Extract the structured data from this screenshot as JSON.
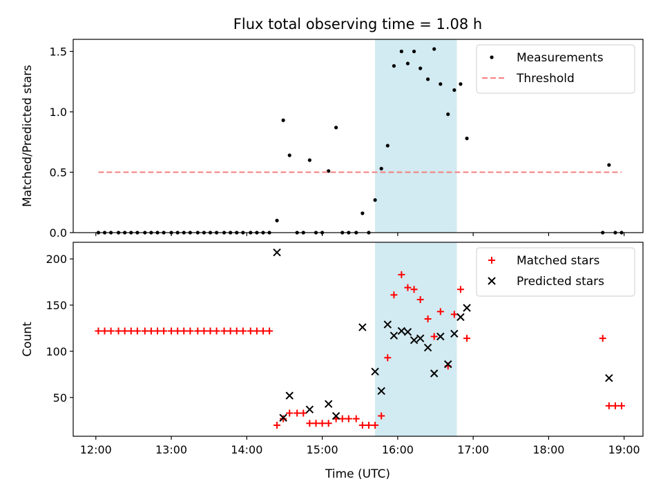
{
  "figure": {
    "title": "Flux total observing time = 1.08 h",
    "xlabel": "Time (UTC)",
    "x_tick_labels": [
      "12:00",
      "13:00",
      "14:00",
      "15:00",
      "16:00",
      "17:00",
      "18:00",
      "19:00"
    ]
  },
  "colors": {
    "measurement": "#000000",
    "threshold": "#f47f7f",
    "matched": "#ff0000",
    "predicted": "#000000",
    "highlight": "#add8e6"
  },
  "chart_data": [
    {
      "type": "scatter",
      "ylabel": "Matched/Predicted stars",
      "ylim": [
        0,
        1.6
      ],
      "xlim": [
        "11:42",
        "19:15"
      ],
      "y_ticks": [
        0.0,
        0.5,
        1.0,
        1.5
      ],
      "y_tick_labels": [
        "0.0",
        "0.5",
        "1.0",
        "1.5"
      ],
      "legend_position": "top-right",
      "highlight_span": {
        "x_start": "15:42",
        "x_end": "16:47"
      },
      "series": [
        {
          "name": "Measurements",
          "marker": "dot",
          "points": [
            [
              "12:02",
              0
            ],
            [
              "12:07",
              0
            ],
            [
              "12:12",
              0
            ],
            [
              "12:18",
              0
            ],
            [
              "12:23",
              0
            ],
            [
              "12:28",
              0
            ],
            [
              "12:33",
              0
            ],
            [
              "12:39",
              0
            ],
            [
              "12:44",
              0
            ],
            [
              "12:49",
              0
            ],
            [
              "12:54",
              0
            ],
            [
              "13:00",
              0
            ],
            [
              "13:05",
              0
            ],
            [
              "13:10",
              0
            ],
            [
              "13:15",
              0
            ],
            [
              "13:21",
              0
            ],
            [
              "13:26",
              0
            ],
            [
              "13:31",
              0
            ],
            [
              "13:36",
              0
            ],
            [
              "13:42",
              0
            ],
            [
              "13:47",
              0
            ],
            [
              "13:52",
              0
            ],
            [
              "13:57",
              0
            ],
            [
              "14:03",
              0
            ],
            [
              "14:08",
              0
            ],
            [
              "14:13",
              0
            ],
            [
              "14:18",
              0
            ],
            [
              "14:24",
              0.1
            ],
            [
              "14:29",
              0.93
            ],
            [
              "14:34",
              0.64
            ],
            [
              "14:40",
              0
            ],
            [
              "14:45",
              0
            ],
            [
              "14:50",
              0.6
            ],
            [
              "14:55",
              0
            ],
            [
              "15:00",
              0
            ],
            [
              "15:05",
              0.51
            ],
            [
              "15:11",
              0.87
            ],
            [
              "15:16",
              0
            ],
            [
              "15:21",
              0
            ],
            [
              "15:27",
              0
            ],
            [
              "15:32",
              0.16
            ],
            [
              "15:37",
              0
            ],
            [
              "15:42",
              0.27
            ],
            [
              "15:47",
              0.53
            ],
            [
              "15:52",
              0.72
            ],
            [
              "15:57",
              1.38
            ],
            [
              "16:03",
              1.5
            ],
            [
              "16:08",
              1.4
            ],
            [
              "16:13",
              1.5
            ],
            [
              "16:18",
              1.36
            ],
            [
              "16:24",
              1.27
            ],
            [
              "16:29",
              1.52
            ],
            [
              "16:34",
              1.23
            ],
            [
              "16:40",
              0.98
            ],
            [
              "16:45",
              1.18
            ],
            [
              "16:50",
              1.23
            ],
            [
              "16:55",
              0.78
            ],
            [
              "18:43",
              0
            ],
            [
              "18:48",
              0.56
            ],
            [
              "18:53",
              0
            ],
            [
              "18:58",
              0
            ]
          ]
        },
        {
          "name": "Threshold",
          "marker": "dashed-line",
          "points": [
            [
              "12:02",
              0.5
            ],
            [
              "18:58",
              0.5
            ]
          ]
        }
      ]
    },
    {
      "type": "scatter",
      "ylabel": "Count",
      "ylim": [
        8,
        218
      ],
      "xlim": [
        "11:42",
        "19:15"
      ],
      "y_ticks": [
        50,
        100,
        150,
        200
      ],
      "y_tick_labels": [
        "50",
        "100",
        "150",
        "200"
      ],
      "legend_position": "top-right",
      "highlight_span": {
        "x_start": "15:42",
        "x_end": "16:47"
      },
      "series": [
        {
          "name": "Matched stars",
          "marker": "plus",
          "points": [
            [
              "12:02",
              122
            ],
            [
              "12:07",
              122
            ],
            [
              "12:12",
              122
            ],
            [
              "12:18",
              122
            ],
            [
              "12:23",
              122
            ],
            [
              "12:28",
              122
            ],
            [
              "12:33",
              122
            ],
            [
              "12:39",
              122
            ],
            [
              "12:44",
              122
            ],
            [
              "12:49",
              122
            ],
            [
              "12:54",
              122
            ],
            [
              "13:00",
              122
            ],
            [
              "13:05",
              122
            ],
            [
              "13:10",
              122
            ],
            [
              "13:15",
              122
            ],
            [
              "13:21",
              122
            ],
            [
              "13:26",
              122
            ],
            [
              "13:31",
              122
            ],
            [
              "13:36",
              122
            ],
            [
              "13:42",
              122
            ],
            [
              "13:47",
              122
            ],
            [
              "13:52",
              122
            ],
            [
              "13:57",
              122
            ],
            [
              "14:03",
              122
            ],
            [
              "14:08",
              122
            ],
            [
              "14:13",
              122
            ],
            [
              "14:18",
              122
            ],
            [
              "14:24",
              20
            ],
            [
              "14:29",
              27
            ],
            [
              "14:34",
              33
            ],
            [
              "14:40",
              33
            ],
            [
              "14:45",
              33
            ],
            [
              "14:50",
              22
            ],
            [
              "14:55",
              22
            ],
            [
              "15:00",
              22
            ],
            [
              "15:05",
              22
            ],
            [
              "15:11",
              27
            ],
            [
              "15:16",
              27
            ],
            [
              "15:21",
              27
            ],
            [
              "15:27",
              27
            ],
            [
              "15:32",
              20
            ],
            [
              "15:37",
              20
            ],
            [
              "15:42",
              20
            ],
            [
              "15:47",
              30
            ],
            [
              "15:52",
              93
            ],
            [
              "15:57",
              161
            ],
            [
              "16:03",
              183
            ],
            [
              "16:08",
              169
            ],
            [
              "16:13",
              167
            ],
            [
              "16:18",
              156
            ],
            [
              "16:24",
              135
            ],
            [
              "16:29",
              116
            ],
            [
              "16:34",
              143
            ],
            [
              "16:40",
              84
            ],
            [
              "16:45",
              140
            ],
            [
              "16:50",
              167
            ],
            [
              "16:55",
              114
            ],
            [
              "18:43",
              114
            ],
            [
              "18:48",
              41
            ],
            [
              "18:53",
              41
            ],
            [
              "18:58",
              41
            ]
          ]
        },
        {
          "name": "Predicted stars",
          "marker": "x",
          "points": [
            [
              "14:24",
              207
            ],
            [
              "14:29",
              28
            ],
            [
              "14:34",
              52
            ],
            [
              "14:50",
              37
            ],
            [
              "15:05",
              43
            ],
            [
              "15:11",
              30
            ],
            [
              "15:32",
              126
            ],
            [
              "15:42",
              78
            ],
            [
              "15:47",
              57
            ],
            [
              "15:52",
              129
            ],
            [
              "15:57",
              117
            ],
            [
              "16:03",
              122
            ],
            [
              "16:08",
              121
            ],
            [
              "16:13",
              112
            ],
            [
              "16:18",
              114
            ],
            [
              "16:24",
              104
            ],
            [
              "16:29",
              76
            ],
            [
              "16:34",
              116
            ],
            [
              "16:40",
              86
            ],
            [
              "16:45",
              119
            ],
            [
              "16:50",
              137
            ],
            [
              "16:55",
              147
            ],
            [
              "18:48",
              71
            ]
          ]
        }
      ]
    }
  ]
}
